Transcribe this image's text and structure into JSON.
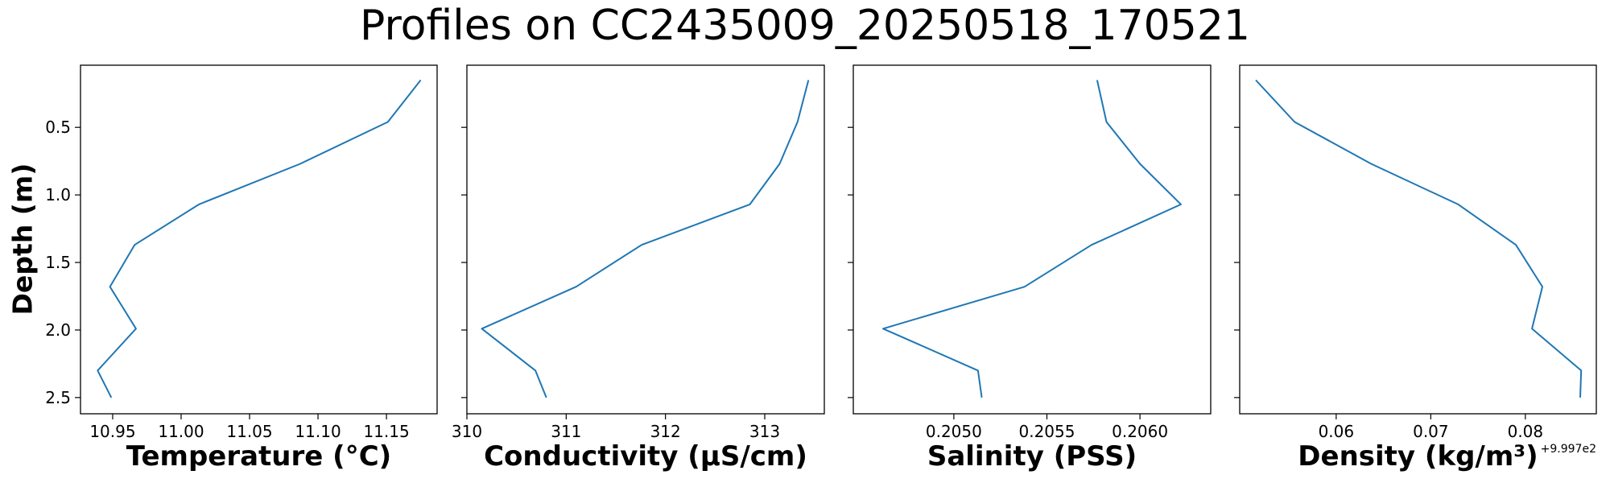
{
  "figure": {
    "title": "Profiles on CC2435009_20250518_170521",
    "ylabel": "Depth (m)"
  },
  "chart_data": [
    {
      "type": "line",
      "xlabel": "Temperature (°C)",
      "ylabel": "Depth (m)",
      "x": [
        11.175,
        11.151,
        11.087,
        11.013,
        10.966,
        10.948,
        10.967,
        10.939,
        10.949
      ],
      "y": [
        0.15,
        0.46,
        0.77,
        1.07,
        1.37,
        1.68,
        1.99,
        2.3,
        2.5
      ],
      "xlim": [
        10.9265,
        11.187
      ],
      "ylim": [
        2.62,
        0.04
      ],
      "xticks": [
        10.95,
        11.0,
        11.05,
        11.1,
        11.15
      ],
      "xtick_labels": [
        "10.95",
        "11.00",
        "11.05",
        "11.10",
        "11.15"
      ],
      "yticks": [
        0.5,
        1.0,
        1.5,
        2.0,
        2.5
      ],
      "ytick_labels": [
        "0.5",
        "1.0",
        "1.5",
        "2.0",
        "2.5"
      ],
      "offset_text": "",
      "line_color": "#1f77b4"
    },
    {
      "type": "line",
      "xlabel": "Conductivity (µS/cm)",
      "ylabel": "Depth (m)",
      "x": [
        313.44,
        313.33,
        313.15,
        312.85,
        311.76,
        311.1,
        310.15,
        310.69,
        310.8
      ],
      "y": [
        0.15,
        0.46,
        0.77,
        1.07,
        1.37,
        1.68,
        1.99,
        2.3,
        2.5
      ],
      "xlim": [
        310.0,
        313.6
      ],
      "ylim": [
        2.62,
        0.04
      ],
      "xticks": [
        310,
        311,
        312,
        313
      ],
      "xtick_labels": [
        "310",
        "311",
        "312",
        "313"
      ],
      "yticks": [
        0.5,
        1.0,
        1.5,
        2.0,
        2.5
      ],
      "ytick_labels": [
        "",
        "",
        "",
        "",
        ""
      ],
      "offset_text": "",
      "line_color": "#1f77b4"
    },
    {
      "type": "line",
      "xlabel": "Salinity (PSS)",
      "ylabel": "Depth (m)",
      "x": [
        0.20577,
        0.20582,
        0.206,
        0.20622,
        0.20574,
        0.20538,
        0.20462,
        0.20513,
        0.20515
      ],
      "y": [
        0.15,
        0.46,
        0.77,
        1.07,
        1.37,
        1.68,
        1.99,
        2.3,
        2.5
      ],
      "xlim": [
        0.20446,
        0.20638
      ],
      "ylim": [
        2.62,
        0.04
      ],
      "xticks": [
        0.205,
        0.2055,
        0.206
      ],
      "xtick_labels": [
        "0.2050",
        "0.2055",
        "0.2060"
      ],
      "yticks": [
        0.5,
        1.0,
        1.5,
        2.0,
        2.5
      ],
      "ytick_labels": [
        "",
        "",
        "",
        "",
        ""
      ],
      "offset_text": "",
      "line_color": "#1f77b4"
    },
    {
      "type": "line",
      "xlabel": "Density (kg/m³)",
      "ylabel": "Depth (m)",
      "x": [
        0.0515,
        0.0556,
        0.0637,
        0.0729,
        0.079,
        0.0818,
        0.0807,
        0.0859,
        0.0858
      ],
      "y": [
        0.15,
        0.46,
        0.77,
        1.07,
        1.37,
        1.68,
        1.99,
        2.3,
        2.5
      ],
      "xlim": [
        0.0498,
        0.0875
      ],
      "ylim": [
        2.62,
        0.04
      ],
      "xticks": [
        0.06,
        0.07,
        0.08
      ],
      "xtick_labels": [
        "0.06",
        "0.07",
        "0.08"
      ],
      "yticks": [
        0.5,
        1.0,
        1.5,
        2.0,
        2.5
      ],
      "ytick_labels": [
        "",
        "",
        "",
        "",
        ""
      ],
      "offset_text": "+9.997e2",
      "line_color": "#1f77b4"
    }
  ]
}
